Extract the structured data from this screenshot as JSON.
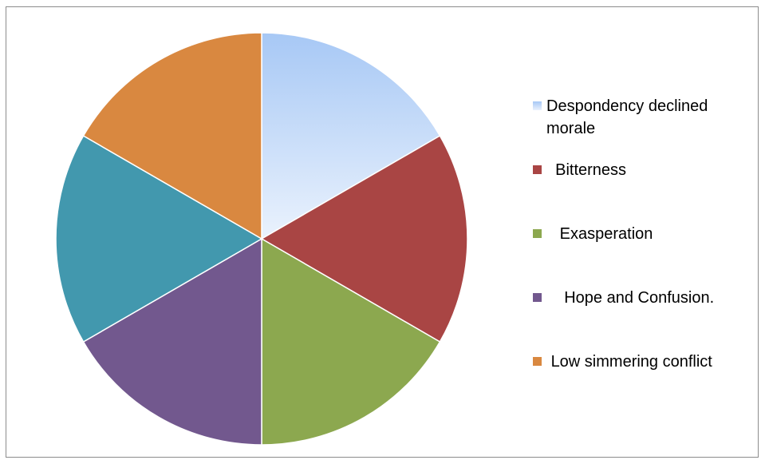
{
  "chart_data": {
    "type": "pie",
    "title": "",
    "slices": [
      {
        "label": "Despondency declined morale",
        "value": 1,
        "color": "#a9c9f5",
        "gradient": [
          "#a7c8f5",
          "#eaf2fd"
        ]
      },
      {
        "label": "Bitterness",
        "value": 1,
        "color": "#a94544"
      },
      {
        "label": "Exasperation",
        "value": 1,
        "color": "#8ca84f"
      },
      {
        "label": "Hope and Confusion.",
        "value": 1,
        "color": "#72588e"
      },
      {
        "label": "",
        "value": 1,
        "color": "#4298ae"
      },
      {
        "label": "Low simmering conflict",
        "value": 1,
        "color": "#d98840"
      }
    ],
    "legend": {
      "placement": "right",
      "entries": [
        {
          "label": "Despondency declined\nmorale",
          "color": "#a9c9f5"
        },
        {
          "label": "  Bitterness",
          "color": "#a94544"
        },
        {
          "label": "   Exasperation",
          "color": "#8ca84f"
        },
        {
          "label": "    Hope and Confusion.",
          "color": "#72588e"
        },
        {
          "label": " Low simmering conflict",
          "color": "#d98840"
        }
      ]
    }
  }
}
